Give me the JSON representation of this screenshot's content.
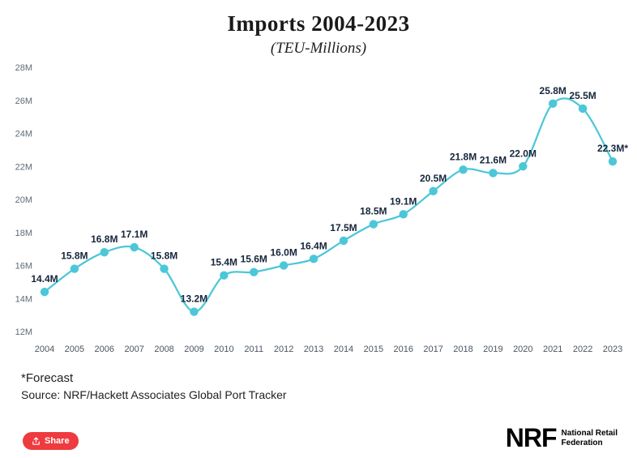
{
  "chart": {
    "title": "Imports 2004-2023",
    "subtitle": "(TEU-Millions)"
  },
  "chart_data": {
    "type": "line",
    "categories": [
      "2004",
      "2005",
      "2006",
      "2007",
      "2008",
      "2009",
      "2010",
      "2011",
      "2012",
      "2013",
      "2014",
      "2015",
      "2016",
      "2017",
      "2018",
      "2019",
      "2020",
      "2021",
      "2022",
      "2023"
    ],
    "values": [
      14.4,
      15.8,
      16.8,
      17.1,
      15.8,
      13.2,
      15.4,
      15.6,
      16.0,
      16.4,
      17.5,
      18.5,
      19.1,
      20.5,
      21.8,
      21.6,
      22.0,
      25.8,
      25.5,
      22.3
    ],
    "point_labels": [
      "14.4M",
      "15.8M",
      "16.8M",
      "17.1M",
      "15.8M",
      "13.2M",
      "15.4M",
      "15.6M",
      "16.0M",
      "16.4M",
      "17.5M",
      "18.5M",
      "19.1M",
      "20.5M",
      "21.8M",
      "21.6M",
      "22.0M",
      "25.8M",
      "25.5M",
      "22.3M*"
    ],
    "yticks": [
      "12M",
      "14M",
      "16M",
      "18M",
      "20M",
      "22M",
      "24M",
      "26M",
      "28M"
    ],
    "ylim": [
      12,
      28
    ],
    "grid": false,
    "legend": "none",
    "line_color": "#4bc7d8",
    "label_color": "#15263a",
    "title": "Imports 2004-2023",
    "xlabel": "",
    "ylabel": ""
  },
  "footer": {
    "forecast_note": "*Forecast",
    "source": "Source: NRF/Hackett Associates Global Port Tracker"
  },
  "share": {
    "label": "Share"
  },
  "logo": {
    "brand": "NRF",
    "line1": "National Retail",
    "line2": "Federation"
  }
}
